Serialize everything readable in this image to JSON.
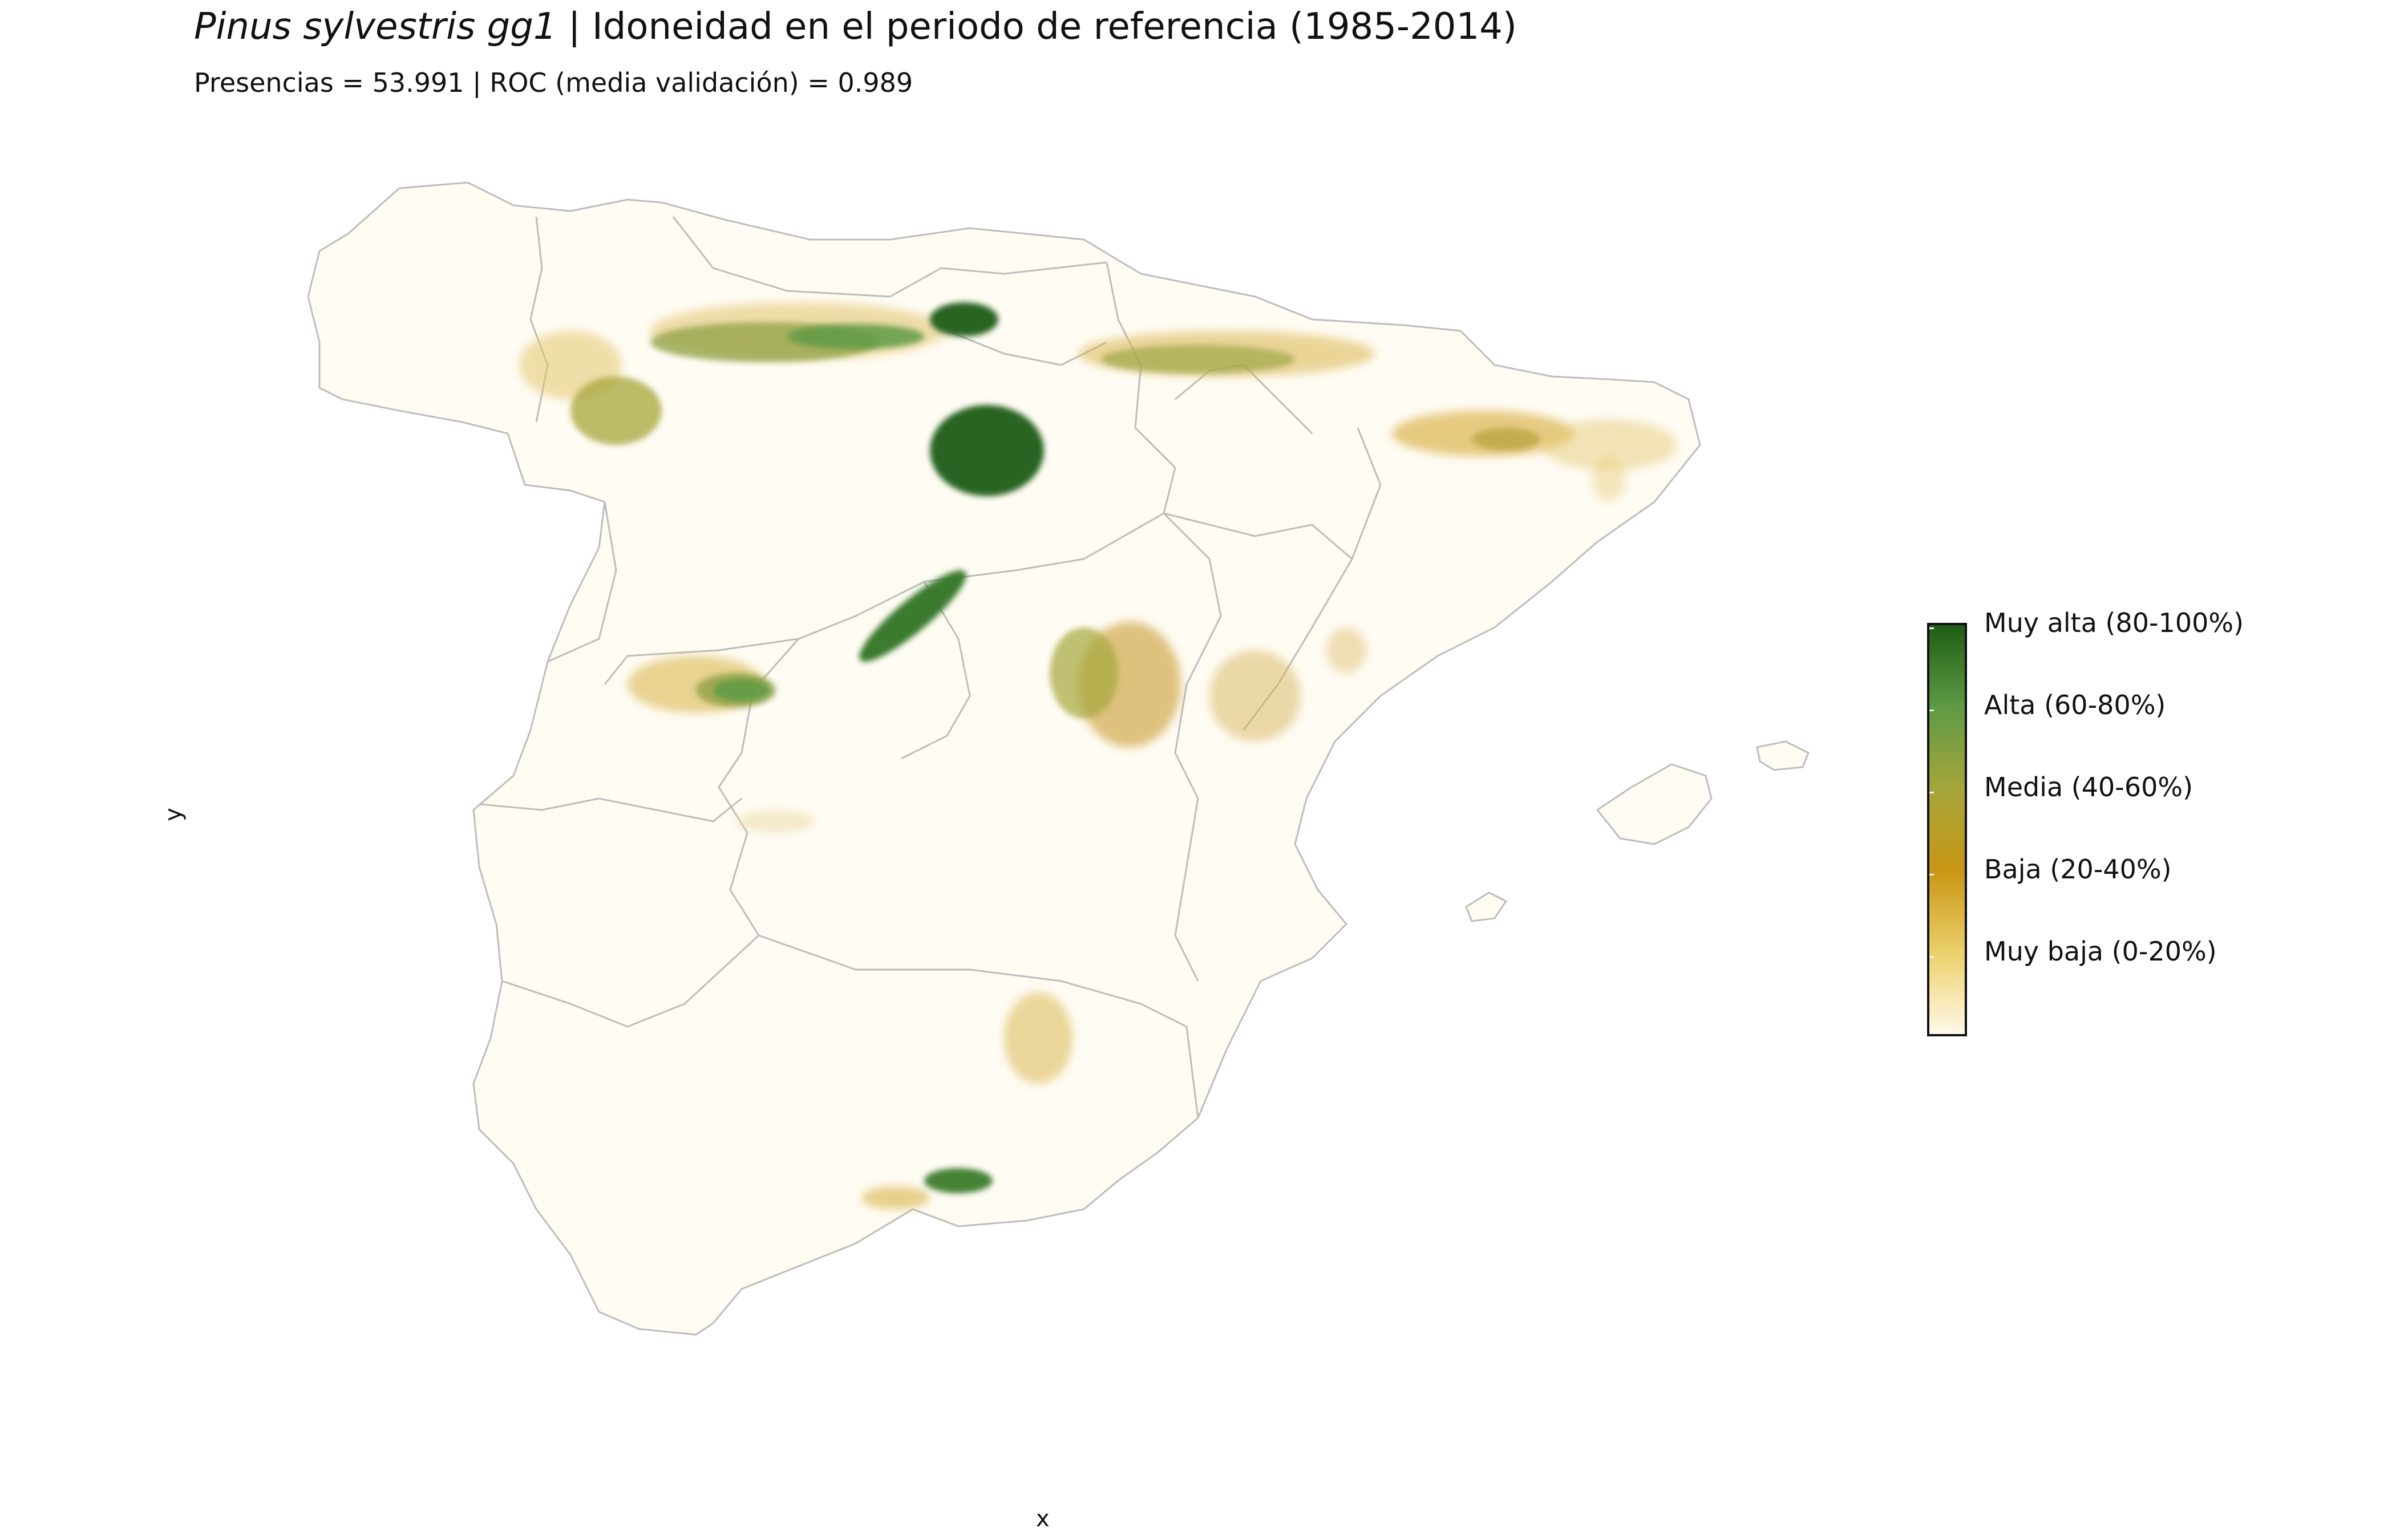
{
  "header": {
    "species": "Pinus sylvestris gg1",
    "title_rest": " | Idoneidad en el periodo de referencia (1985-2014)",
    "subtitle": "Presencias = 53.991  |  ROC (media validación) = 0.989"
  },
  "axes": {
    "x_label": "x",
    "y_label": "y"
  },
  "legend": {
    "items": [
      {
        "label": "Muy alta (80-100%)"
      },
      {
        "label": "Alta (60-80%)"
      },
      {
        "label": "Media (40-60%)"
      },
      {
        "label": "Baja (20-40%)"
      },
      {
        "label": "Muy baja (0-20%)"
      }
    ]
  },
  "colors": {
    "muy_alta": "#1e5d14",
    "alta": "#5f9a45",
    "media": "#a5a63b",
    "baja": "#c89614",
    "muy_baja": "#ecd06b",
    "zero": "#fff9e8",
    "border": "#bdbdbd"
  }
}
